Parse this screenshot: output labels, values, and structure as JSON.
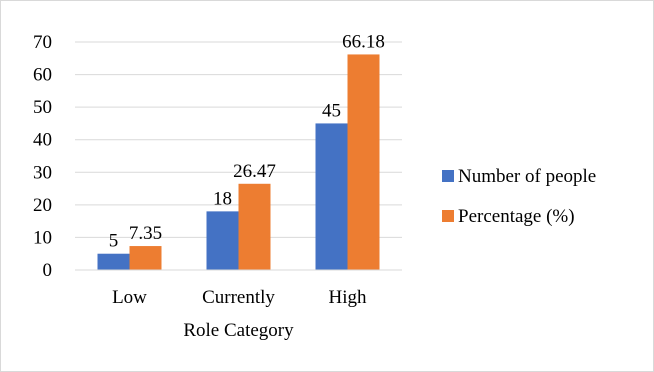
{
  "chart_data": {
    "type": "bar",
    "title": "",
    "xlabel": "Role Category",
    "ylabel": "",
    "categories": [
      "Low",
      "Currently",
      "High"
    ],
    "series": [
      {
        "name": "Number of people",
        "values": [
          5,
          18,
          45
        ],
        "labels": [
          "5",
          "18",
          "45"
        ],
        "color": "#4472c4"
      },
      {
        "name": "Percentage (%)",
        "values": [
          7.35,
          26.47,
          66.18
        ],
        "labels": [
          "7.35",
          "26.47",
          "66.18"
        ],
        "color": "#ed7d31"
      }
    ],
    "ylim": [
      0,
      70
    ],
    "yticks": [
      "0",
      "10",
      "20",
      "30",
      "40",
      "50",
      "60",
      "70"
    ],
    "grid": true,
    "legend_position": "right"
  }
}
